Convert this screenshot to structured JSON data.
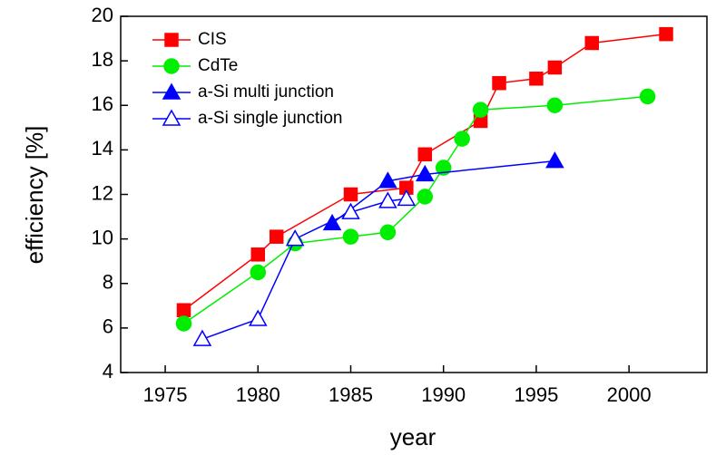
{
  "chart_data": {
    "type": "line",
    "xlabel": "year",
    "ylabel": "efficiency [%]",
    "xlim": [
      1972.6,
      2004.2
    ],
    "xticks": [
      1975,
      1980,
      1985,
      1990,
      1995,
      2000
    ],
    "ylim": [
      4,
      20
    ],
    "yticks": [
      4,
      6,
      8,
      10,
      12,
      14,
      16,
      18,
      20
    ],
    "legend": "upper-left",
    "series": [
      {
        "name": "CIS",
        "color": "#ff0000",
        "marker": "square",
        "filled": true,
        "x": [
          1976,
          1980,
          1981,
          1985,
          1988,
          1989,
          1992,
          1993,
          1995,
          1996,
          1998,
          2002
        ],
        "values": [
          6.8,
          9.3,
          10.1,
          12.0,
          12.3,
          13.8,
          15.3,
          17.0,
          17.2,
          17.7,
          18.8,
          19.2
        ]
      },
      {
        "name": "CdTe",
        "color": "#00ee00",
        "marker": "circle",
        "filled": true,
        "x": [
          1976,
          1980,
          1982,
          1985,
          1987,
          1989,
          1990,
          1991,
          1992,
          1996,
          2001
        ],
        "values": [
          6.2,
          8.5,
          9.8,
          10.1,
          10.3,
          11.9,
          13.2,
          14.5,
          15.8,
          16.0,
          16.4
        ]
      },
      {
        "name": "a-Si multi junction",
        "color": "#0000ff",
        "marker": "triangle",
        "filled": true,
        "x": [
          1984,
          1987,
          1989,
          1996
        ],
        "values": [
          10.7,
          12.6,
          12.9,
          13.5
        ]
      },
      {
        "name": "a-Si single junction",
        "color": "#0000ff",
        "marker": "triangle",
        "filled": false,
        "x": [
          1977,
          1980,
          1982,
          1985,
          1987,
          1988
        ],
        "values": [
          5.5,
          6.4,
          10.0,
          11.2,
          11.7,
          11.8
        ]
      }
    ]
  }
}
